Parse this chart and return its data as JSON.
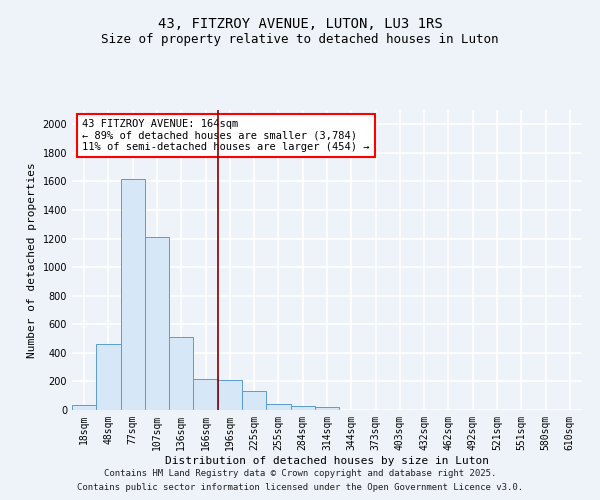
{
  "title": "43, FITZROY AVENUE, LUTON, LU3 1RS",
  "subtitle": "Size of property relative to detached houses in Luton",
  "xlabel": "Distribution of detached houses by size in Luton",
  "ylabel": "Number of detached properties",
  "categories": [
    "18sqm",
    "48sqm",
    "77sqm",
    "107sqm",
    "136sqm",
    "166sqm",
    "196sqm",
    "225sqm",
    "255sqm",
    "284sqm",
    "314sqm",
    "344sqm",
    "373sqm",
    "403sqm",
    "432sqm",
    "462sqm",
    "492sqm",
    "521sqm",
    "551sqm",
    "580sqm",
    "610sqm"
  ],
  "values": [
    35,
    460,
    1620,
    1210,
    510,
    220,
    210,
    130,
    45,
    30,
    20,
    0,
    0,
    0,
    0,
    0,
    0,
    0,
    0,
    0,
    0
  ],
  "bar_color": "#d6e8f7",
  "bar_edge_color": "#5b9bd5",
  "marker_line_color": "#8b0000",
  "marker_bar_index": 5,
  "annotation_text": "43 FITZROY AVENUE: 164sqm\n← 89% of detached houses are smaller (3,784)\n11% of semi-detached houses are larger (454) →",
  "ylim": [
    0,
    2100
  ],
  "yticks": [
    0,
    200,
    400,
    600,
    800,
    1000,
    1200,
    1400,
    1600,
    1800,
    2000
  ],
  "footer_line1": "Contains HM Land Registry data © Crown copyright and database right 2025.",
  "footer_line2": "Contains public sector information licensed under the Open Government Licence v3.0.",
  "bg_color": "#eef2f9",
  "plot_bg_color": "#eef2f9",
  "grid_color": "#ffffff",
  "title_fontsize": 10,
  "subtitle_fontsize": 9,
  "axis_label_fontsize": 8,
  "tick_fontsize": 7,
  "annotation_fontsize": 7.5,
  "footer_fontsize": 6.5
}
